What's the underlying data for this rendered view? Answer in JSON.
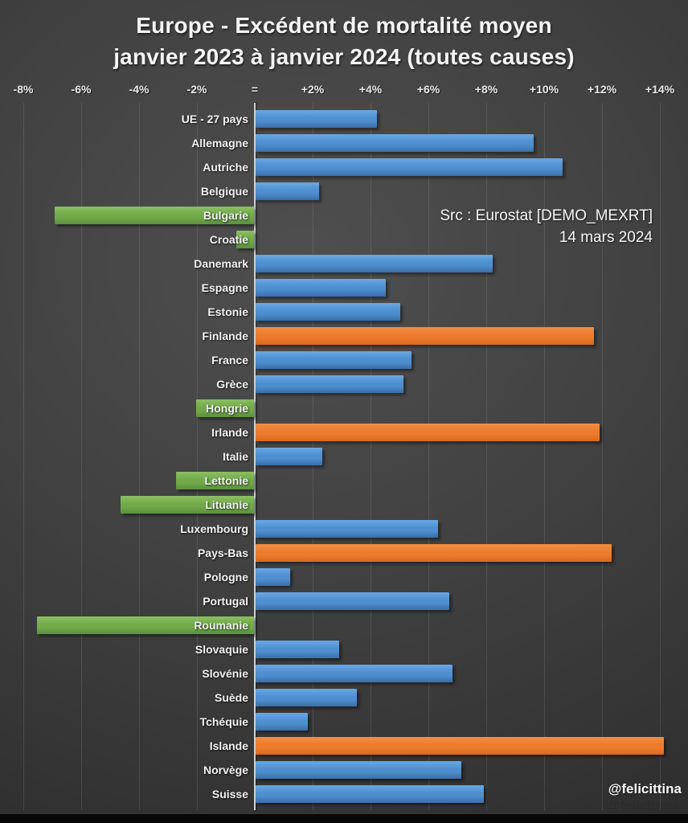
{
  "title": {
    "line1": "Europe - Excédent de mortalité moyen",
    "line2": "janvier 2023 à janvier 2024 (toutes causes)"
  },
  "source": {
    "line1": "Src : Eurostat [DEMO_MEXRT]",
    "line2": "14 mars 2024"
  },
  "watermark": {
    "primary": "@felicittina",
    "secondary": "@felicittina"
  },
  "axis": {
    "ticks": [
      {
        "label": "-8%",
        "value": -8
      },
      {
        "label": "-6%",
        "value": -6
      },
      {
        "label": "-4%",
        "value": -4
      },
      {
        "label": "-2%",
        "value": -2
      },
      {
        "label": "=",
        "value": 0
      },
      {
        "label": "+2%",
        "value": 2
      },
      {
        "label": "+4%",
        "value": 4
      },
      {
        "label": "+6%",
        "value": 6
      },
      {
        "label": "+8%",
        "value": 8
      },
      {
        "label": "+10%",
        "value": 10
      },
      {
        "label": "+12%",
        "value": 12
      },
      {
        "label": "+14%",
        "value": 14
      }
    ]
  },
  "colors": {
    "positive_bar": {
      "top": "#6aa7e4",
      "mid": "#4f8fd0",
      "bottom": "#3a6ea9"
    },
    "high_bar": {
      "top": "#f28e42",
      "mid": "#ec7b2d",
      "bottom": "#d96a1e"
    },
    "negative_bar": {
      "top": "#8cbf63",
      "mid": "#72aa4a",
      "bottom": "#5b9140"
    },
    "axis_line": "#cfcfcf",
    "text": "#f2f2f2",
    "background_center": "#4f4f4f",
    "background_edge": "#242424"
  },
  "chart_data": {
    "type": "bar",
    "orientation": "horizontal",
    "title": "Europe - Excédent de mortalité moyen janvier 2023 à janvier 2024 (toutes causes)",
    "unit": "%",
    "xlim": [
      -9,
      15
    ],
    "x_ticks": [
      -8,
      -6,
      -4,
      -2,
      0,
      2,
      4,
      6,
      8,
      10,
      12,
      14
    ],
    "grid": true,
    "legend": "none",
    "categories": [
      "UE - 27 pays",
      "Allemagne",
      "Autriche",
      "Belgique",
      "Bulgarie",
      "Croatie",
      "Danemark",
      "Espagne",
      "Estonie",
      "Finlande",
      "France",
      "Grèce",
      "Hongrie",
      "Irlande",
      "Italie",
      "Lettonie",
      "Lituanie",
      "Luxembourg",
      "Pays-Bas",
      "Pologne",
      "Portugal",
      "Roumanie",
      "Slovaquie",
      "Slovénie",
      "Suède",
      "Tchéquie",
      "Islande",
      "Norvège",
      "Suisse"
    ],
    "values": [
      4.2,
      9.6,
      10.6,
      2.2,
      -6.9,
      -0.6,
      8.2,
      4.5,
      5.0,
      11.7,
      5.4,
      5.1,
      -2.0,
      11.9,
      2.3,
      -2.7,
      -4.6,
      6.3,
      12.3,
      1.2,
      6.7,
      -7.5,
      2.9,
      6.8,
      3.5,
      1.8,
      14.1,
      7.1,
      7.9
    ],
    "bar_color_class": [
      "positive_bar",
      "positive_bar",
      "positive_bar",
      "positive_bar",
      "negative_bar",
      "negative_bar",
      "positive_bar",
      "positive_bar",
      "positive_bar",
      "high_bar",
      "positive_bar",
      "positive_bar",
      "negative_bar",
      "high_bar",
      "positive_bar",
      "negative_bar",
      "negative_bar",
      "positive_bar",
      "high_bar",
      "positive_bar",
      "positive_bar",
      "negative_bar",
      "positive_bar",
      "positive_bar",
      "positive_bar",
      "positive_bar",
      "high_bar",
      "positive_bar",
      "positive_bar"
    ]
  }
}
